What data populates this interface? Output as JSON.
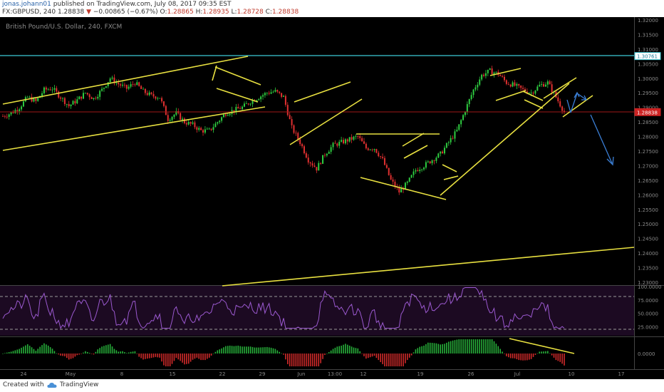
{
  "header": {
    "username": "jonas.johann01",
    "published_text": "published on TradingView.com, July 08, 2017 09:35 EST",
    "symbol": "FX:GBPUSD, 240",
    "last": "1.28838",
    "change": "−0.00865 (−0.67%)",
    "open_label": "O:",
    "open": "1.28865",
    "high_label": "H:",
    "high": "1.28935",
    "low_label": "L:",
    "low": "1.28728",
    "close_label": "C:",
    "close": "1.28838"
  },
  "chart_data": [
    {
      "type": "candlestick",
      "title": "British Pound/U.S. Dollar, 240, FXCM",
      "ylim": [
        1.228,
        1.322
      ],
      "y_ticks": [
        "1.32000",
        "1.31500",
        "1.31000",
        "1.30500",
        "1.30000",
        "1.29500",
        "1.29000",
        "1.28500",
        "1.28000",
        "1.27500",
        "1.27000",
        "1.26500",
        "1.26000",
        "1.25500",
        "1.25000",
        "1.24500",
        "1.24000",
        "1.23500",
        "1.23000"
      ],
      "x_ticks": [
        "24",
        "May",
        "8",
        "15",
        "22",
        "29",
        "Jun",
        "13:00",
        "12",
        "19",
        "26",
        "Jul",
        "10",
        "17"
      ],
      "price_labels": [
        {
          "text": "1.30761",
          "value": 1.30761,
          "color": "#3ec9d6"
        },
        {
          "text": "1.28838",
          "value": 1.28838,
          "color": "#cc2222"
        }
      ],
      "horizontal_lines": [
        {
          "value": 1.30761,
          "color": "#3ec9d6"
        },
        {
          "value": 1.28838,
          "color": "#cc2222"
        }
      ],
      "series_path_points": [
        [
          0,
          1.287
        ],
        [
          4,
          1.288
        ],
        [
          8,
          1.29
        ],
        [
          12,
          1.2935
        ],
        [
          16,
          1.292
        ],
        [
          20,
          1.296
        ],
        [
          24,
          1.2965
        ],
        [
          28,
          1.2935
        ],
        [
          32,
          1.2905
        ],
        [
          36,
          1.2925
        ],
        [
          40,
          1.295
        ],
        [
          44,
          1.293
        ],
        [
          48,
          1.296
        ],
        [
          52,
          1.3
        ],
        [
          56,
          1.298
        ],
        [
          60,
          1.2965
        ],
        [
          64,
          1.2985
        ],
        [
          68,
          1.2955
        ],
        [
          72,
          1.294
        ],
        [
          76,
          1.2935
        ],
        [
          80,
          1.286
        ],
        [
          84,
          1.288
        ],
        [
          88,
          1.285
        ],
        [
          92,
          1.284
        ],
        [
          96,
          1.282
        ],
        [
          100,
          1.282
        ],
        [
          104,
          1.285
        ],
        [
          108,
          1.288
        ],
        [
          112,
          1.289
        ],
        [
          116,
          1.29
        ],
        [
          120,
          1.292
        ],
        [
          124,
          1.2935
        ],
        [
          128,
          1.295
        ],
        [
          132,
          1.2955
        ],
        [
          136,
          1.2935
        ],
        [
          140,
          1.283
        ],
        [
          144,
          1.278
        ],
        [
          148,
          1.272
        ],
        [
          152,
          1.269
        ],
        [
          156,
          1.274
        ],
        [
          160,
          1.277
        ],
        [
          164,
          1.278
        ],
        [
          168,
          1.279
        ],
        [
          172,
          1.28
        ],
        [
          176,
          1.276
        ],
        [
          180,
          1.276
        ],
        [
          184,
          1.272
        ],
        [
          188,
          1.265
        ],
        [
          192,
          1.261
        ],
        [
          196,
          1.264
        ],
        [
          200,
          1.2685
        ],
        [
          204,
          1.27
        ],
        [
          208,
          1.272
        ],
        [
          212,
          1.274
        ],
        [
          216,
          1.278
        ],
        [
          220,
          1.282
        ],
        [
          224,
          1.289
        ],
        [
          228,
          1.296
        ],
        [
          232,
          1.301
        ],
        [
          236,
          1.3025
        ],
        [
          240,
          1.3015
        ],
        [
          244,
          1.2985
        ],
        [
          248,
          1.2975
        ],
        [
          252,
          1.296
        ],
        [
          256,
          1.295
        ],
        [
          260,
          1.2975
        ],
        [
          264,
          1.2985
        ],
        [
          268,
          1.2935
        ],
        [
          272,
          1.2884
        ]
      ]
    },
    {
      "type": "line",
      "title": "",
      "ylim": [
        20,
        100
      ],
      "y_ticks": [
        "100.0000",
        "75.0000",
        "50.0000",
        "25.0000"
      ],
      "levels": [
        80,
        20
      ]
    },
    {
      "type": "bar",
      "title": "",
      "y_ticks": [
        "0.0000"
      ]
    }
  ],
  "footer": {
    "created_with": "Created with",
    "brand": "TradingView"
  }
}
